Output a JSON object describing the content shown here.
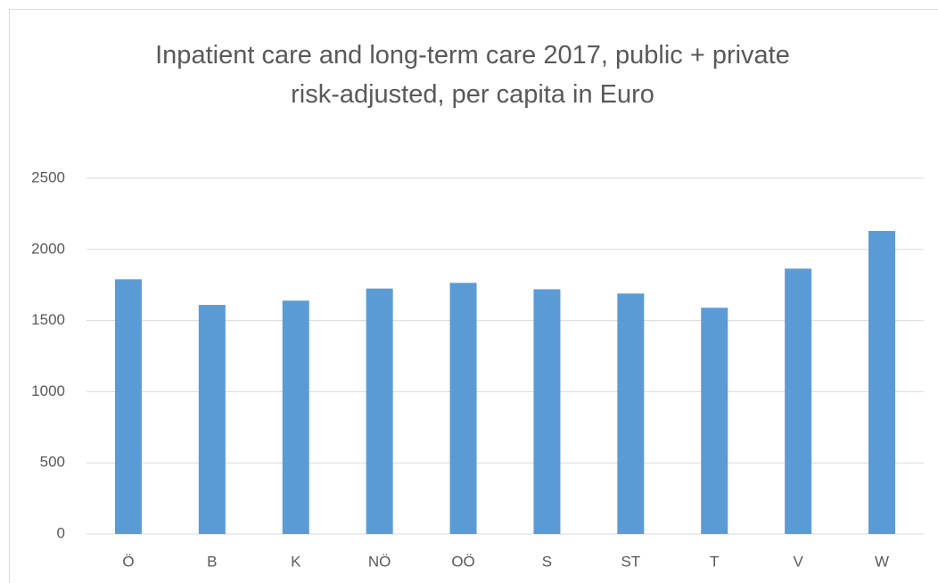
{
  "chart_data": {
    "type": "bar",
    "title": "Inpatient care and long-term care 2017, public + private",
    "subtitle": "risk-adjusted, per capita in Euro",
    "categories": [
      "Ö",
      "B",
      "K",
      "NÖ",
      "OÖ",
      "S",
      "ST",
      "T",
      "V",
      "W"
    ],
    "values": [
      1790,
      1610,
      1640,
      1725,
      1765,
      1720,
      1690,
      1590,
      1865,
      2130
    ],
    "color": "#5b9bd5",
    "ylim": [
      0,
      2500
    ],
    "yticks": [
      0,
      500,
      1000,
      1500,
      2000,
      2500
    ],
    "grid": true
  }
}
